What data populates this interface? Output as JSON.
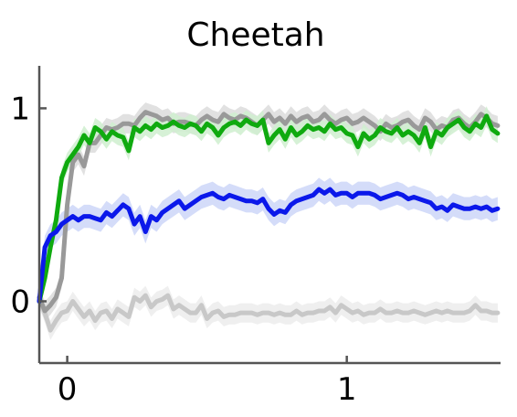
{
  "chart_data": {
    "type": "line",
    "title": "Cheetah",
    "xlabel": "",
    "ylabel": "",
    "xlim": [
      -0.1,
      1.55
    ],
    "ylim": [
      -0.32,
      1.22
    ],
    "x_ticks": [
      {
        "value": 0,
        "label": "0"
      },
      {
        "value": 1,
        "label": "1"
      }
    ],
    "y_ticks": [
      {
        "value": 0,
        "label": "0"
      },
      {
        "value": 1,
        "label": "1"
      }
    ],
    "grid": false,
    "legend": "none",
    "x": [
      -0.1,
      -0.08,
      -0.06,
      -0.04,
      -0.02,
      0.0,
      0.02,
      0.04,
      0.06,
      0.08,
      0.1,
      0.12,
      0.14,
      0.16,
      0.18,
      0.2,
      0.22,
      0.24,
      0.26,
      0.28,
      0.3,
      0.32,
      0.34,
      0.36,
      0.38,
      0.4,
      0.42,
      0.44,
      0.46,
      0.48,
      0.5,
      0.52,
      0.54,
      0.56,
      0.58,
      0.6,
      0.62,
      0.64,
      0.66,
      0.68,
      0.7,
      0.72,
      0.74,
      0.76,
      0.78,
      0.8,
      0.82,
      0.84,
      0.86,
      0.88,
      0.9,
      0.92,
      0.94,
      0.96,
      0.98,
      1.0,
      1.02,
      1.04,
      1.06,
      1.08,
      1.1,
      1.12,
      1.14,
      1.16,
      1.18,
      1.2,
      1.22,
      1.24,
      1.26,
      1.28,
      1.3,
      1.32,
      1.34,
      1.36,
      1.38,
      1.4,
      1.42,
      1.44,
      1.46,
      1.48,
      1.5,
      1.52,
      1.54
    ],
    "series": [
      {
        "color": "#c8c8c8",
        "band_color": "#ececec",
        "values": [
          0.02,
          -0.06,
          -0.15,
          -0.1,
          -0.06,
          -0.05,
          0.0,
          -0.04,
          -0.08,
          -0.05,
          -0.1,
          -0.06,
          -0.05,
          -0.09,
          -0.04,
          -0.06,
          -0.08,
          0.02,
          0.0,
          0.03,
          -0.03,
          0.0,
          0.01,
          0.03,
          -0.04,
          -0.02,
          -0.04,
          -0.06,
          -0.06,
          -0.02,
          -0.09,
          -0.06,
          -0.05,
          -0.08,
          -0.07,
          -0.07,
          -0.06,
          -0.06,
          -0.06,
          -0.07,
          -0.06,
          -0.06,
          -0.07,
          -0.06,
          -0.07,
          -0.07,
          -0.05,
          -0.07,
          -0.06,
          -0.06,
          -0.05,
          -0.05,
          -0.03,
          -0.06,
          -0.02,
          -0.04,
          -0.06,
          -0.05,
          -0.07,
          -0.06,
          -0.06,
          -0.04,
          -0.06,
          -0.06,
          -0.05,
          -0.06,
          -0.06,
          -0.05,
          -0.06,
          -0.07,
          -0.06,
          -0.05,
          -0.06,
          -0.05,
          -0.06,
          -0.06,
          -0.06,
          -0.05,
          -0.02,
          -0.05,
          -0.05,
          -0.06,
          -0.06
        ],
        "band": 0.05
      },
      {
        "color": "#999999",
        "band_color": "#dcdcdc",
        "values": [
          0.02,
          -0.05,
          -0.02,
          0.02,
          0.12,
          0.5,
          0.72,
          0.76,
          0.7,
          0.82,
          0.82,
          0.86,
          0.9,
          0.89,
          0.9,
          0.92,
          0.92,
          0.91,
          0.95,
          0.98,
          0.97,
          0.96,
          0.94,
          0.95,
          0.92,
          0.93,
          0.93,
          0.92,
          0.91,
          0.94,
          0.96,
          0.94,
          0.93,
          0.97,
          0.95,
          0.94,
          0.96,
          0.95,
          0.93,
          0.91,
          0.94,
          0.97,
          0.93,
          0.95,
          0.92,
          0.96,
          0.93,
          0.95,
          0.96,
          0.93,
          0.94,
          0.97,
          0.94,
          0.92,
          0.94,
          0.95,
          0.92,
          0.93,
          0.95,
          0.93,
          0.91,
          0.88,
          0.92,
          0.9,
          0.91,
          0.93,
          0.94,
          0.91,
          0.89,
          0.95,
          0.93,
          0.89,
          0.91,
          0.9,
          0.94,
          0.95,
          0.92,
          0.9,
          0.93,
          0.97,
          0.95,
          0.92,
          0.91
        ],
        "band": 0.05
      },
      {
        "color": "#0faa0f",
        "band_color": "#cfeecf",
        "values": [
          0.0,
          0.12,
          0.28,
          0.42,
          0.64,
          0.72,
          0.76,
          0.8,
          0.86,
          0.82,
          0.9,
          0.88,
          0.84,
          0.88,
          0.86,
          0.85,
          0.78,
          0.9,
          0.88,
          0.91,
          0.89,
          0.92,
          0.9,
          0.91,
          0.93,
          0.91,
          0.9,
          0.92,
          0.91,
          0.88,
          0.92,
          0.9,
          0.86,
          0.9,
          0.92,
          0.93,
          0.91,
          0.94,
          0.92,
          0.91,
          0.94,
          0.82,
          0.86,
          0.89,
          0.84,
          0.9,
          0.86,
          0.88,
          0.91,
          0.89,
          0.9,
          0.88,
          0.92,
          0.89,
          0.9,
          0.87,
          0.86,
          0.8,
          0.87,
          0.84,
          0.86,
          0.9,
          0.88,
          0.87,
          0.9,
          0.86,
          0.88,
          0.86,
          0.82,
          0.9,
          0.8,
          0.88,
          0.86,
          0.9,
          0.92,
          0.94,
          0.9,
          0.88,
          0.92,
          0.9,
          0.96,
          0.89,
          0.87
        ],
        "band": 0.05
      },
      {
        "color": "#0b18ea",
        "band_color": "#ccd6f8",
        "values": [
          0.0,
          0.28,
          0.34,
          0.36,
          0.4,
          0.42,
          0.44,
          0.42,
          0.44,
          0.44,
          0.43,
          0.42,
          0.46,
          0.44,
          0.47,
          0.5,
          0.48,
          0.4,
          0.44,
          0.36,
          0.44,
          0.42,
          0.46,
          0.48,
          0.5,
          0.52,
          0.48,
          0.5,
          0.52,
          0.54,
          0.55,
          0.56,
          0.54,
          0.53,
          0.55,
          0.54,
          0.53,
          0.52,
          0.52,
          0.51,
          0.53,
          0.48,
          0.45,
          0.47,
          0.46,
          0.5,
          0.52,
          0.53,
          0.54,
          0.55,
          0.58,
          0.56,
          0.58,
          0.55,
          0.56,
          0.56,
          0.54,
          0.56,
          0.56,
          0.56,
          0.55,
          0.53,
          0.54,
          0.55,
          0.56,
          0.55,
          0.53,
          0.54,
          0.53,
          0.52,
          0.51,
          0.48,
          0.49,
          0.47,
          0.5,
          0.49,
          0.48,
          0.48,
          0.49,
          0.48,
          0.49,
          0.47,
          0.48
        ],
        "band": 0.06
      }
    ]
  }
}
